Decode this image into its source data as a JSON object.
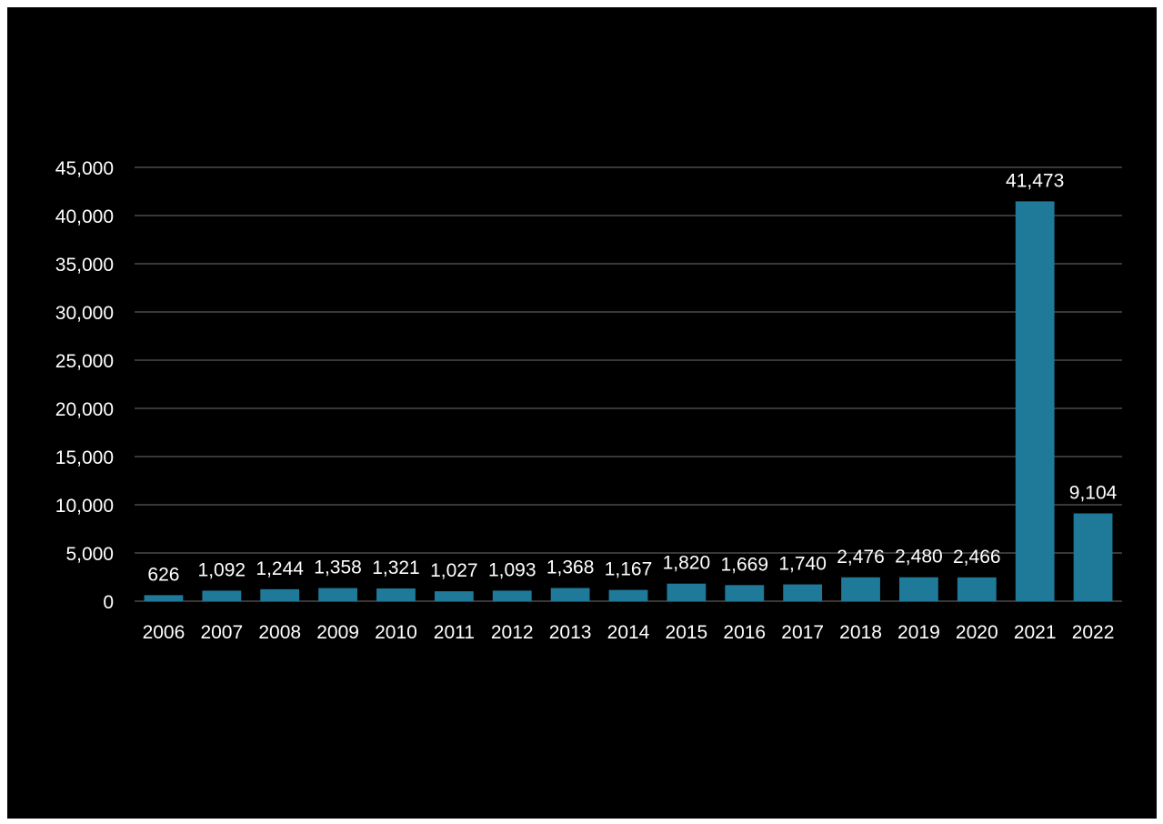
{
  "chart_data": {
    "type": "bar",
    "title": "",
    "xlabel": "",
    "ylabel": "",
    "categories": [
      "2006",
      "2007",
      "2008",
      "2009",
      "2010",
      "2011",
      "2012",
      "2013",
      "2014",
      "2015",
      "2016",
      "2017",
      "2018",
      "2019",
      "2020",
      "2021",
      "2022"
    ],
    "values": [
      626,
      1092,
      1244,
      1358,
      1321,
      1027,
      1093,
      1368,
      1167,
      1820,
      1669,
      1740,
      2476,
      2480,
      2466,
      41473,
      9104
    ],
    "data_labels": [
      "626",
      "1,092",
      "1,244",
      "1,358",
      "1,321",
      "1,027",
      "1,093",
      "1,368",
      "1,167",
      "1,820",
      "1,669",
      "1,740",
      "2,476",
      "2,480",
      "2,466",
      "41,473",
      "9,104"
    ],
    "ylim": [
      0,
      45000
    ],
    "yticks": [
      0,
      5000,
      10000,
      15000,
      20000,
      25000,
      30000,
      35000,
      40000,
      45000
    ],
    "ytick_labels": [
      "0",
      "5,000",
      "10,000",
      "15,000",
      "20,000",
      "25,000",
      "30,000",
      "35,000",
      "40,000",
      "45,000"
    ],
    "grid": true,
    "legend": "none",
    "colors": {
      "background": "#000000",
      "bar": "#1f7a99",
      "grid": "#4a4a4a",
      "text": "#ffffff"
    }
  }
}
